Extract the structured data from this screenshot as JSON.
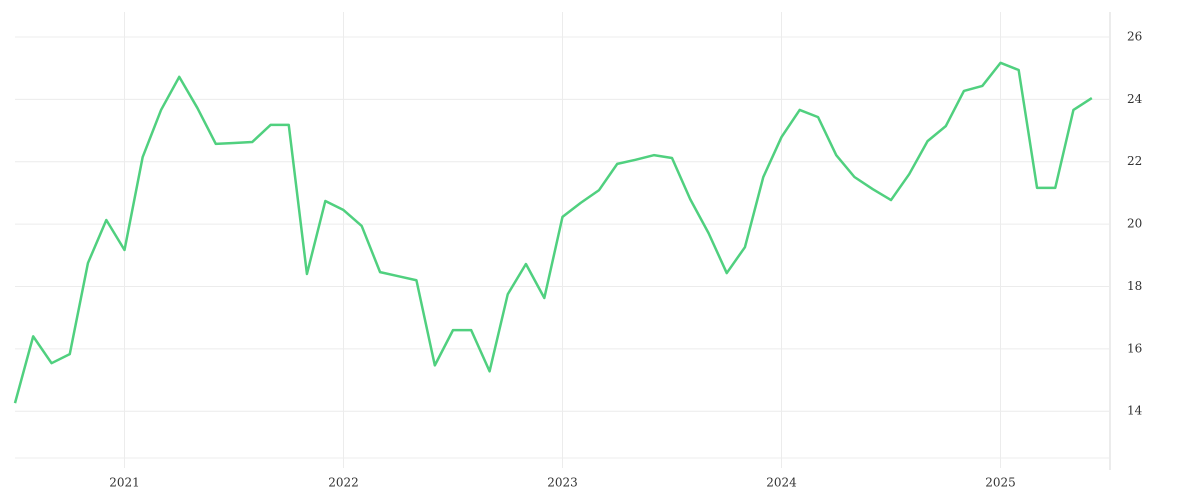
{
  "chart_data": {
    "type": "line",
    "x": [
      2020.5,
      2020.583,
      2020.667,
      2020.75,
      2020.833,
      2020.917,
      2021,
      2021.083,
      2021.167,
      2021.25,
      2021.333,
      2021.417,
      2021.5,
      2021.583,
      2021.667,
      2021.75,
      2021.833,
      2021.917,
      2022,
      2022.083,
      2022.167,
      2022.25,
      2022.333,
      2022.417,
      2022.5,
      2022.583,
      2022.667,
      2022.75,
      2022.833,
      2022.917,
      2023,
      2023.083,
      2023.167,
      2023.25,
      2023.333,
      2023.417,
      2023.5,
      2023.583,
      2023.667,
      2023.75,
      2023.833,
      2023.917,
      2024,
      2024.083,
      2024.167,
      2024.25,
      2024.333,
      2024.417,
      2024.5,
      2024.583,
      2024.667,
      2024.75,
      2024.833,
      2024.917,
      2025,
      2025.083,
      2025.167,
      2025.25,
      2025.333,
      2025.417
    ],
    "values": [
      14.26,
      16.4,
      15.54,
      15.83,
      18.75,
      20.13,
      19.17,
      22.15,
      23.66,
      24.72,
      23.72,
      22.57,
      22.6,
      22.63,
      23.18,
      23.18,
      18.4,
      20.74,
      20.45,
      19.94,
      18.46,
      18.33,
      18.2,
      15.47,
      16.6,
      16.6,
      15.28,
      17.75,
      18.72,
      17.63,
      20.23,
      20.68,
      21.09,
      21.93,
      22.06,
      22.21,
      22.12,
      20.8,
      19.71,
      18.43,
      19.26,
      21.51,
      22.79,
      23.66,
      23.43,
      22.21,
      21.51,
      21.12,
      20.77,
      21.6,
      22.66,
      23.14,
      24.27,
      24.43,
      25.17,
      24.94,
      21.16,
      21.16,
      23.66,
      24.04
    ],
    "color": "#50d07f",
    "xlim": [
      2020.5,
      2025.5
    ],
    "xticks": [
      2021,
      2022,
      2023,
      2024,
      2025
    ],
    "ylim": [
      12.5,
      26.8
    ],
    "yticks": [
      14,
      16,
      18,
      20,
      22,
      24,
      26
    ],
    "grid": true,
    "y_axis_side": "right"
  }
}
